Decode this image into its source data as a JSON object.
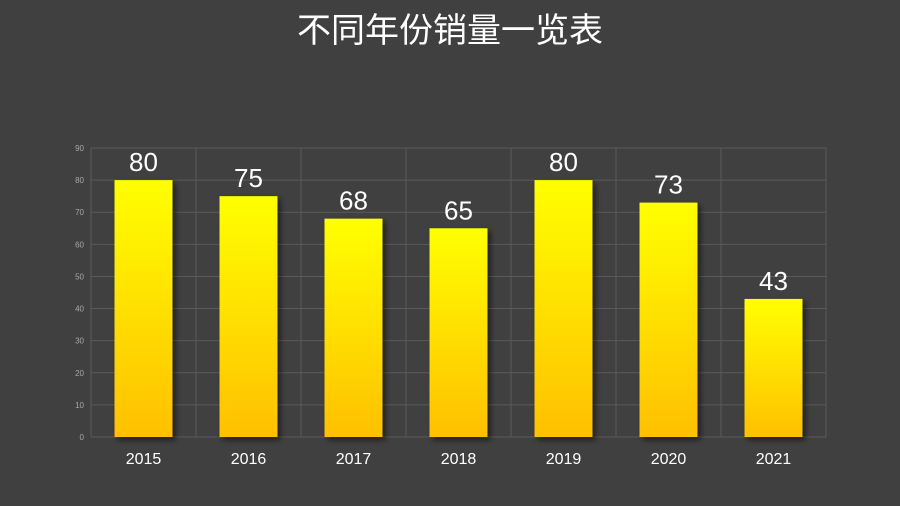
{
  "chart_data": {
    "type": "bar",
    "title": "不同年份销量一览表",
    "categories": [
      "2015",
      "2016",
      "2017",
      "2018",
      "2019",
      "2020",
      "2021"
    ],
    "values": [
      80,
      75,
      68,
      65,
      80,
      73,
      43
    ],
    "ylim": [
      0,
      90
    ],
    "yticks": [
      0,
      10,
      20,
      30,
      40,
      50,
      60,
      70,
      80,
      90
    ],
    "xlabel": "",
    "ylabel": "",
    "grid": true,
    "data_labels": true,
    "legend": "none",
    "colors": {
      "background": "#404040",
      "bar_top": "#ffff00",
      "bar_bottom": "#ffc000",
      "grid": "#5a5a5a",
      "tick_text": "#a8a8a8",
      "label_text": "#ffffff"
    }
  }
}
